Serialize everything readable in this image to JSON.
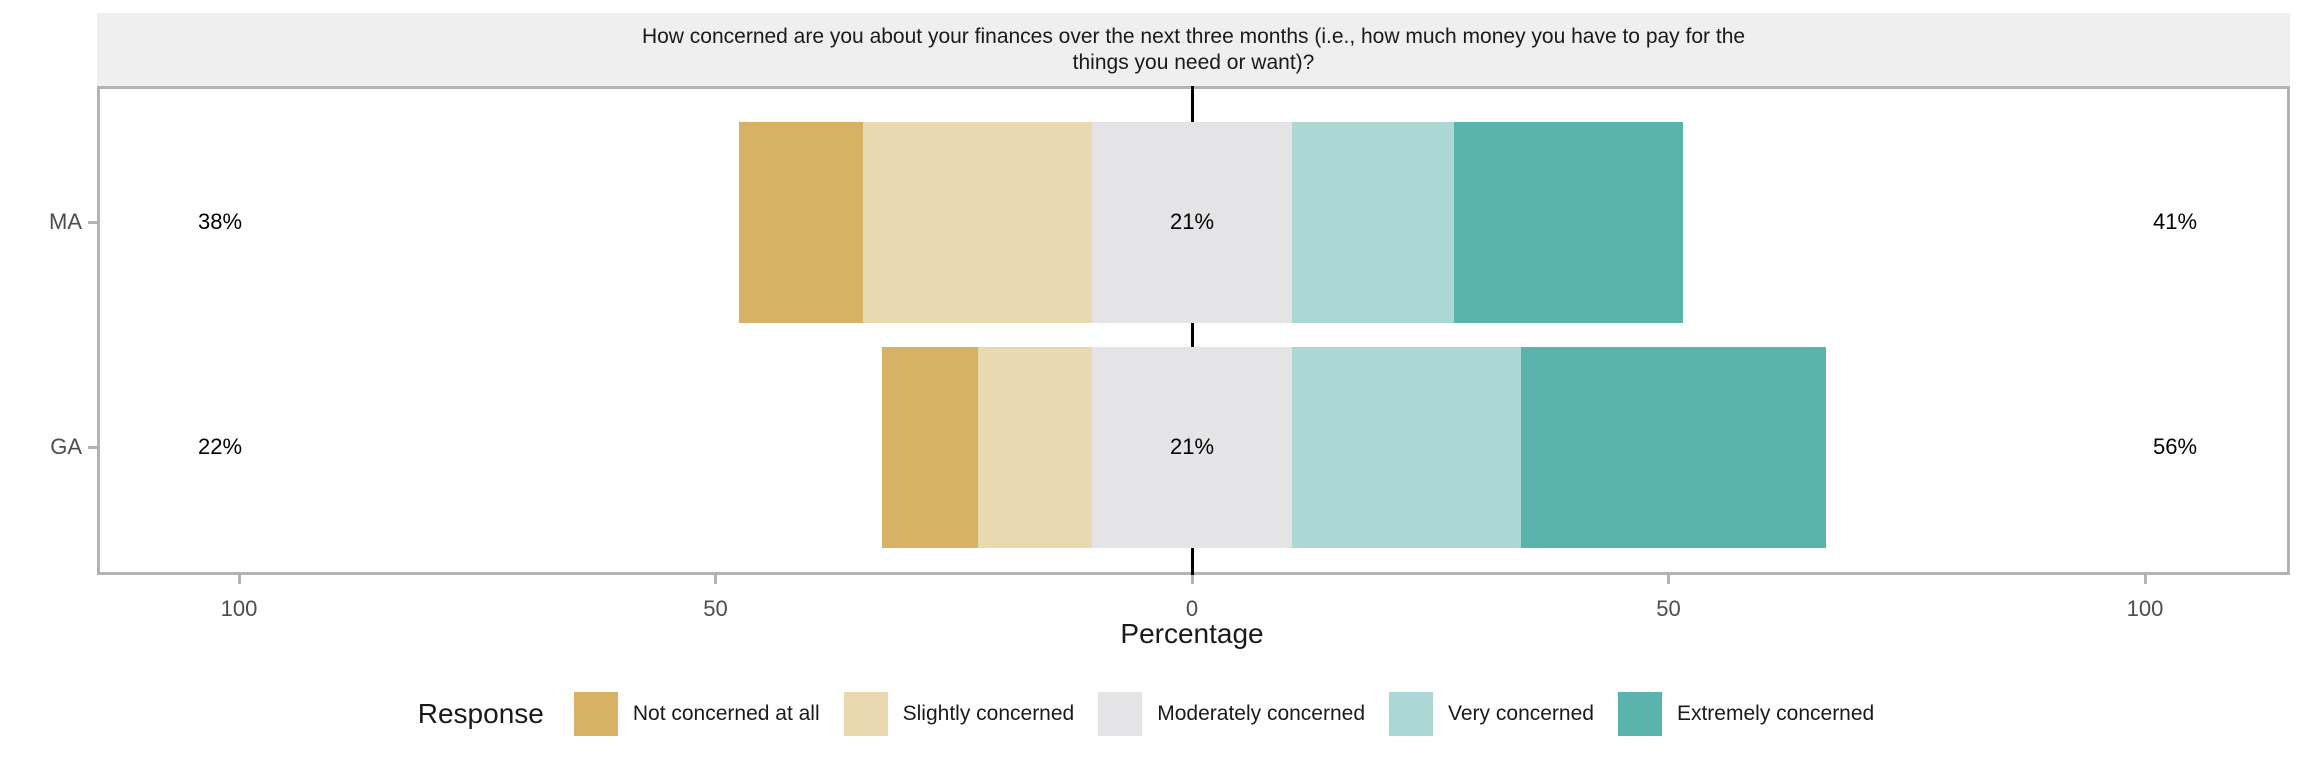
{
  "strip": {
    "title_line1": "How concerned are you about your finances over the next three months (i.e., how much money you have to pay for the",
    "title_line2": "things you need or want)?"
  },
  "axis": {
    "title": "Percentage"
  },
  "legend": {
    "title": "Response"
  },
  "chart_data": {
    "type": "bar",
    "variant": "diverging-stacked-likert",
    "orientation": "horizontal",
    "title": "How concerned are you about your finances over the next three months (i.e., how much money you have to pay for the things you need or want)?",
    "xlabel": "Percentage",
    "ylabel": "",
    "categories": [
      "MA",
      "GA"
    ],
    "series": [
      {
        "name": "Not concerned at all",
        "color": "#D8B264",
        "values": [
          13,
          10
        ]
      },
      {
        "name": "Slightly concerned",
        "color": "#EAD9B0",
        "values": [
          24,
          12
        ]
      },
      {
        "name": "Moderately concerned",
        "color": "#E4E3E5",
        "values": [
          21,
          21
        ]
      },
      {
        "name": "Very concerned",
        "color": "#ABD8D4",
        "values": [
          17,
          24
        ]
      },
      {
        "name": "Extremely concerned",
        "color": "#5AB3AC",
        "values": [
          24,
          32
        ]
      }
    ],
    "totals_labels": [
      {
        "category": "MA",
        "left": "38%",
        "middle": "21%",
        "right": "41%"
      },
      {
        "category": "GA",
        "left": "22%",
        "middle": "21%",
        "right": "56%"
      }
    ],
    "x_ticks": [
      {
        "value": -100,
        "label": "100"
      },
      {
        "value": -50,
        "label": "50"
      },
      {
        "value": 0,
        "label": "0"
      },
      {
        "value": 50,
        "label": "50"
      },
      {
        "value": 100,
        "label": "100"
      }
    ],
    "x_range": [
      -115,
      117
    ],
    "middle_category_centered_on_zero": true,
    "grid": false,
    "legend_position": "bottom",
    "colors": {
      "strip_background": "#EFEFEF",
      "panel_border": "#B3B3B3",
      "zero_line": "#000000",
      "tick": "#B3B3B3",
      "tick_label_text": "#4D4D4D",
      "row_label_text": "#4D4D4D",
      "title_text": "#1A1A1A"
    }
  }
}
